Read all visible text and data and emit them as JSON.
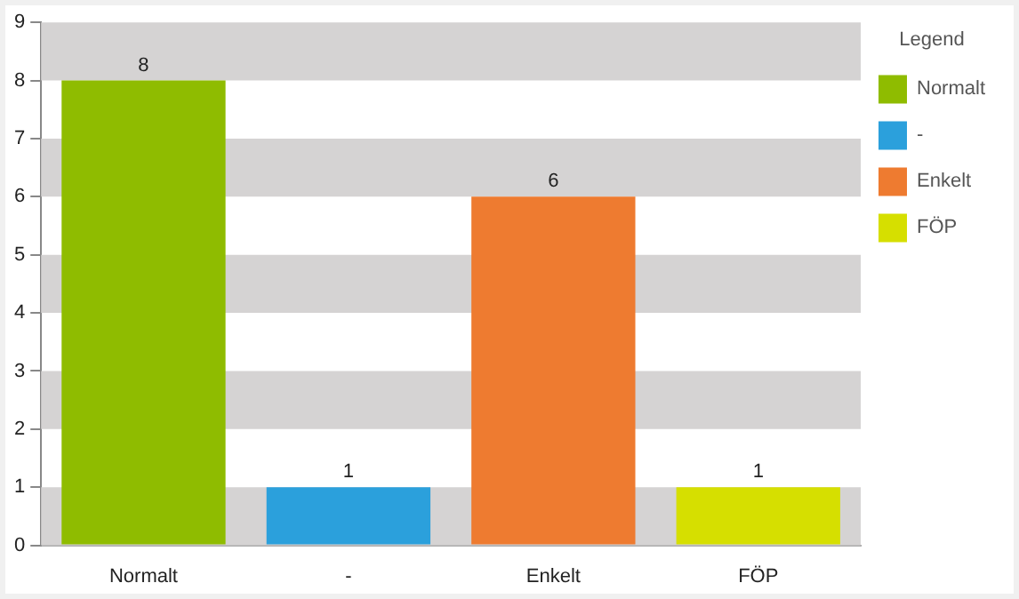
{
  "chart_data": {
    "type": "bar",
    "categories": [
      "Normalt",
      "-",
      "Enkelt",
      "FÖP"
    ],
    "series": [
      {
        "name": "Normalt",
        "color": "#8fbc00",
        "values": [
          8,
          null,
          null,
          null
        ]
      },
      {
        "name": "-",
        "color": "#2ba0dc",
        "values": [
          null,
          1,
          null,
          null
        ]
      },
      {
        "name": "Enkelt",
        "color": "#ee7b30",
        "values": [
          null,
          null,
          6,
          null
        ]
      },
      {
        "name": "FÖP",
        "color": "#d6df00",
        "values": [
          null,
          null,
          null,
          1
        ]
      }
    ],
    "ylim": [
      0,
      9
    ],
    "yticks": [
      0,
      1,
      2,
      3,
      4,
      5,
      6,
      7,
      8,
      9
    ],
    "bands": [
      {
        "axis": "y",
        "from": 0,
        "to": 1,
        "color": "#d5d3d3"
      },
      {
        "axis": "y",
        "from": 2,
        "to": 3,
        "color": "#d5d3d3"
      },
      {
        "axis": "y",
        "from": 4,
        "to": 5,
        "color": "#d5d3d3"
      },
      {
        "axis": "y",
        "from": 6,
        "to": 7,
        "color": "#d5d3d3"
      },
      {
        "axis": "y",
        "from": 8,
        "to": 9,
        "color": "#d5d3d3"
      }
    ],
    "data_labels": true,
    "legend": "right",
    "legend_title": "Legend",
    "grid": false
  }
}
